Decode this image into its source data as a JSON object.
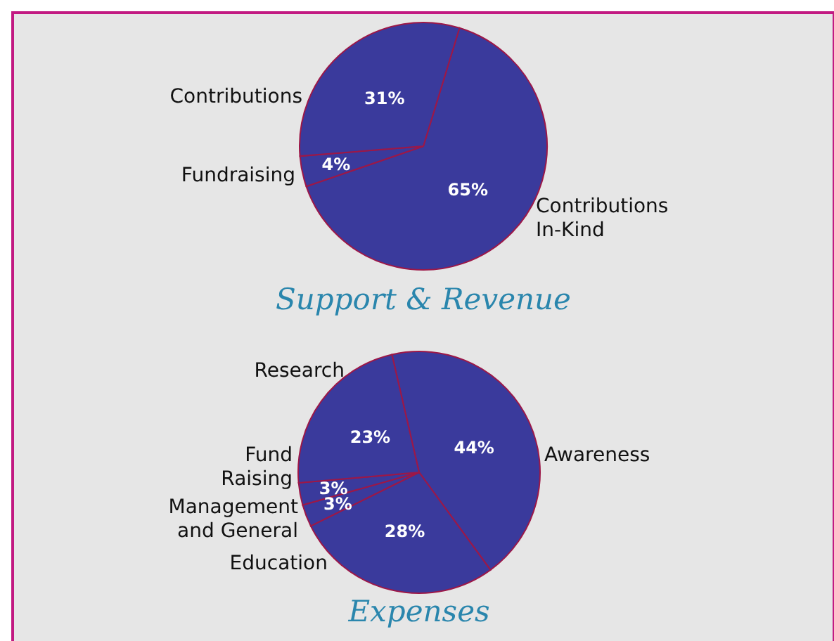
{
  "chart_data": [
    {
      "type": "pie",
      "title": "Support & Revenue",
      "categories": [
        "Contributions\nIn-Kind",
        "Fundraising",
        "Contributions"
      ],
      "values": [
        65,
        4,
        31
      ],
      "value_labels": [
        "65%",
        "4%",
        "31%"
      ],
      "colors": [
        "#3a3a9c",
        "#3a3a9c",
        "#3a3a9c"
      ]
    },
    {
      "type": "pie",
      "title": "Expenses",
      "categories": [
        "Awareness",
        "Education",
        "Management\nand General",
        "Fund\nRaising",
        "Research"
      ],
      "values": [
        44,
        28,
        3,
        3,
        23
      ],
      "value_labels": [
        "44%",
        "28%",
        "3%",
        "3%",
        "23%"
      ],
      "colors": [
        "#3a3a9c",
        "#3a3a9c",
        "#3a3a9c",
        "#3a3a9c",
        "#3a3a9c"
      ]
    }
  ]
}
